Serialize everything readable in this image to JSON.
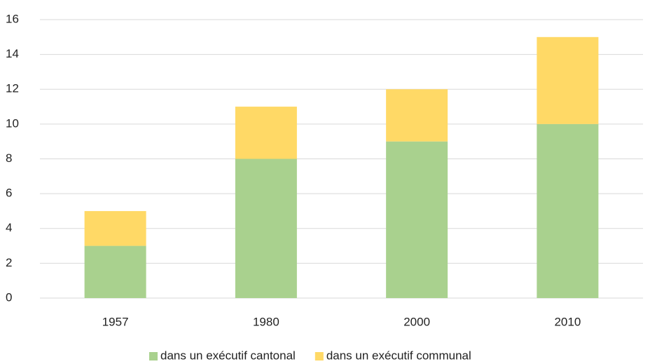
{
  "chart_data": {
    "type": "stacked_bar",
    "categories": [
      "1957",
      "1980",
      "2000",
      "2010"
    ],
    "series": [
      {
        "name": "dans un exécutif cantonal",
        "color": "#a9d18e",
        "values": [
          3,
          8,
          9,
          10
        ]
      },
      {
        "name": "dans un exécutif communal",
        "color": "#ffd966",
        "values": [
          2,
          3,
          3,
          5
        ]
      }
    ],
    "ylim": [
      0,
      16
    ],
    "yticks": [
      0,
      2,
      4,
      6,
      8,
      10,
      12,
      14,
      16
    ],
    "grid": true,
    "legend": "bottom"
  }
}
